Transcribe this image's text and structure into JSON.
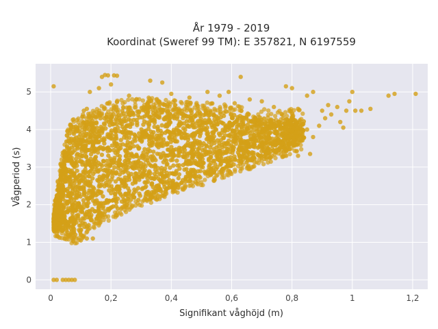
{
  "chart_data": {
    "type": "scatter",
    "title": "År 1979 - 2019",
    "subtitle": "Koordinat (Sweref 99 TM): E 357821, N 6197559",
    "xlabel": "Signifikant våghöjd (m)",
    "ylabel": "Vågperiod (s)",
    "xlim": [
      -0.05,
      1.25
    ],
    "ylim": [
      -0.25,
      5.75
    ],
    "x_ticks": [
      0,
      0.2,
      0.4,
      0.6,
      0.8,
      1,
      1.2
    ],
    "x_tick_labels": [
      "0",
      "0,2",
      "0,4",
      "0,6",
      "0,8",
      "1",
      "1,2"
    ],
    "y_ticks": [
      0,
      1,
      2,
      3,
      4,
      5
    ],
    "y_tick_labels": [
      "0",
      "1",
      "2",
      "3",
      "4",
      "5"
    ],
    "grid": true,
    "marker_color": "#D4A017",
    "plot_bg": "#E6E6EF",
    "dense_band": [
      [
        0.01,
        1.35,
        1.75
      ],
      [
        0.04,
        1.3,
        3.2
      ],
      [
        0.06,
        1.2,
        4.0
      ],
      [
        0.08,
        1.15,
        4.1
      ],
      [
        0.1,
        1.2,
        4.15
      ],
      [
        0.12,
        1.4,
        4.2
      ],
      [
        0.15,
        1.6,
        4.3
      ],
      [
        0.2,
        1.8,
        4.5
      ],
      [
        0.25,
        2.0,
        4.55
      ],
      [
        0.3,
        2.15,
        4.6
      ],
      [
        0.35,
        2.3,
        4.6
      ],
      [
        0.4,
        2.45,
        4.55
      ],
      [
        0.45,
        2.6,
        4.5
      ],
      [
        0.5,
        2.7,
        4.5
      ],
      [
        0.55,
        2.85,
        4.45
      ],
      [
        0.6,
        3.0,
        4.4
      ],
      [
        0.65,
        3.1,
        4.35
      ],
      [
        0.7,
        3.25,
        4.3
      ],
      [
        0.75,
        3.4,
        4.25
      ],
      [
        0.8,
        3.55,
        4.3
      ],
      [
        0.84,
        3.7,
        4.25
      ]
    ],
    "scatter_points": [
      {
        "x": 0.01,
        "y": 5.15
      },
      {
        "x": 0.01,
        "y": 0.0
      },
      {
        "x": 0.02,
        "y": 0.0
      },
      {
        "x": 0.04,
        "y": 0.0
      },
      {
        "x": 0.05,
        "y": 0.0
      },
      {
        "x": 0.06,
        "y": 0.0
      },
      {
        "x": 0.07,
        "y": 0.0
      },
      {
        "x": 0.08,
        "y": 0.0
      },
      {
        "x": 0.17,
        "y": 5.4
      },
      {
        "x": 0.18,
        "y": 5.45
      },
      {
        "x": 0.19,
        "y": 5.44
      },
      {
        "x": 0.21,
        "y": 5.44
      },
      {
        "x": 0.22,
        "y": 5.43
      },
      {
        "x": 0.13,
        "y": 5.0
      },
      {
        "x": 0.16,
        "y": 5.1
      },
      {
        "x": 0.2,
        "y": 5.2
      },
      {
        "x": 0.26,
        "y": 4.9
      },
      {
        "x": 0.33,
        "y": 5.3
      },
      {
        "x": 0.37,
        "y": 5.25
      },
      {
        "x": 0.4,
        "y": 4.95
      },
      {
        "x": 0.46,
        "y": 4.85
      },
      {
        "x": 0.52,
        "y": 5.0
      },
      {
        "x": 0.56,
        "y": 4.9
      },
      {
        "x": 0.59,
        "y": 5.0
      },
      {
        "x": 0.61,
        "y": 4.7
      },
      {
        "x": 0.66,
        "y": 4.8
      },
      {
        "x": 0.7,
        "y": 4.75
      },
      {
        "x": 0.74,
        "y": 4.6
      },
      {
        "x": 0.78,
        "y": 5.15
      },
      {
        "x": 0.8,
        "y": 5.1
      },
      {
        "x": 0.82,
        "y": 4.55
      },
      {
        "x": 0.85,
        "y": 4.9
      },
      {
        "x": 0.87,
        "y": 5.0
      },
      {
        "x": 0.9,
        "y": 4.5
      },
      {
        "x": 0.92,
        "y": 4.65
      },
      {
        "x": 0.93,
        "y": 4.4
      },
      {
        "x": 0.95,
        "y": 4.6
      },
      {
        "x": 0.96,
        "y": 4.2
      },
      {
        "x": 0.98,
        "y": 4.5
      },
      {
        "x": 0.97,
        "y": 4.05
      },
      {
        "x": 0.99,
        "y": 4.75
      },
      {
        "x": 1.0,
        "y": 5.0
      },
      {
        "x": 1.01,
        "y": 4.5
      },
      {
        "x": 1.03,
        "y": 4.5
      },
      {
        "x": 1.06,
        "y": 4.55
      },
      {
        "x": 1.12,
        "y": 4.9
      },
      {
        "x": 1.14,
        "y": 4.95
      },
      {
        "x": 1.21,
        "y": 4.95
      },
      {
        "x": 0.85,
        "y": 4.0
      },
      {
        "x": 0.87,
        "y": 3.8
      },
      {
        "x": 0.89,
        "y": 4.1
      },
      {
        "x": 0.86,
        "y": 3.35
      },
      {
        "x": 0.82,
        "y": 3.3
      },
      {
        "x": 0.91,
        "y": 4.3
      },
      {
        "x": 0.63,
        "y": 5.4
      },
      {
        "x": 0.12,
        "y": 4.55
      },
      {
        "x": 0.11,
        "y": 4.5
      },
      {
        "x": 0.14,
        "y": 1.1
      },
      {
        "x": 0.1,
        "y": 1.05
      },
      {
        "x": 0.12,
        "y": 1.1
      }
    ]
  }
}
